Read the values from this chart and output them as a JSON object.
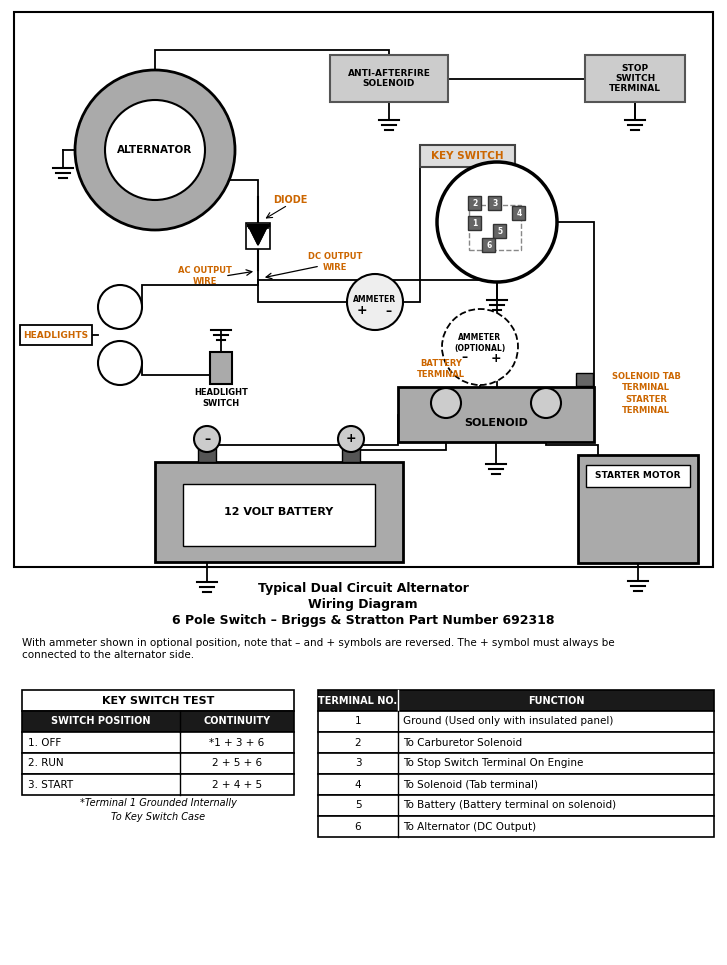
{
  "title_line1": "Typical Dual Circuit Alternator",
  "title_line2": "Wiring Diagram",
  "title_line3": "6 Pole Switch – Briggs & Stratton Part Number 692318",
  "note": "With ammeter shown in optional position, note that – and + symbols are reversed. The + symbol must always be\nconnected to the alternator side.",
  "bg_color": "#ffffff",
  "key_switch_test": {
    "title": "KEY SWITCH TEST",
    "headers": [
      "SWITCH POSITION",
      "CONTINUITY"
    ],
    "rows": [
      [
        "1. OFF",
        "*1 + 3 + 6"
      ],
      [
        "2. RUN",
        "2 + 5 + 6"
      ],
      [
        "3. START",
        "2 + 4 + 5"
      ]
    ],
    "footnote1": "*Terminal 1 Grounded Internally",
    "footnote2": "To Key Switch Case"
  },
  "terminal_table": {
    "headers": [
      "TERMINAL NO.",
      "FUNCTION"
    ],
    "rows": [
      [
        "1",
        "Ground (Used only with insulated panel)"
      ],
      [
        "2",
        "To Carburetor Solenoid"
      ],
      [
        "3",
        "To Stop Switch Terminal On Engine"
      ],
      [
        "4",
        "To Solenoid (Tab terminal)"
      ],
      [
        "5",
        "To Battery (Battery terminal on solenoid)"
      ],
      [
        "6",
        "To Alternator (DC Output)"
      ]
    ]
  }
}
